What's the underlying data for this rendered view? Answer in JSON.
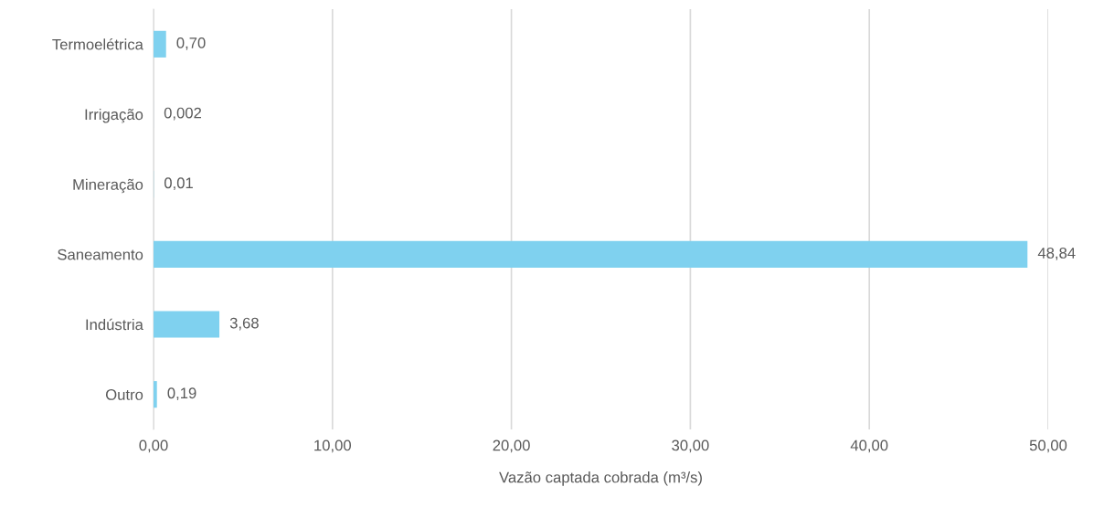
{
  "chart_data": {
    "type": "bar",
    "orientation": "horizontal",
    "xlabel": "Vazão captada cobrada (m³/s)",
    "categories": [
      "Termoelétrica",
      "Irrigação",
      "Mineração",
      "Saneamento",
      "Indústria",
      "Outro"
    ],
    "values": [
      0.7,
      0.002,
      0.01,
      48.84,
      3.68,
      0.19
    ],
    "value_labels": [
      "0,70",
      "0,002",
      "0,01",
      "48,84",
      "3,68",
      "0,19"
    ],
    "color": "#7fd1ef",
    "xlim": [
      0,
      50
    ],
    "xticks": [
      {
        "value": 0,
        "label": "0,00"
      },
      {
        "value": 10,
        "label": "10,00"
      },
      {
        "value": 20,
        "label": "20,00"
      },
      {
        "value": 30,
        "label": "30,00"
      },
      {
        "value": 40,
        "label": "40,00"
      },
      {
        "value": 50,
        "label": "50,00"
      }
    ],
    "grid": "x"
  }
}
